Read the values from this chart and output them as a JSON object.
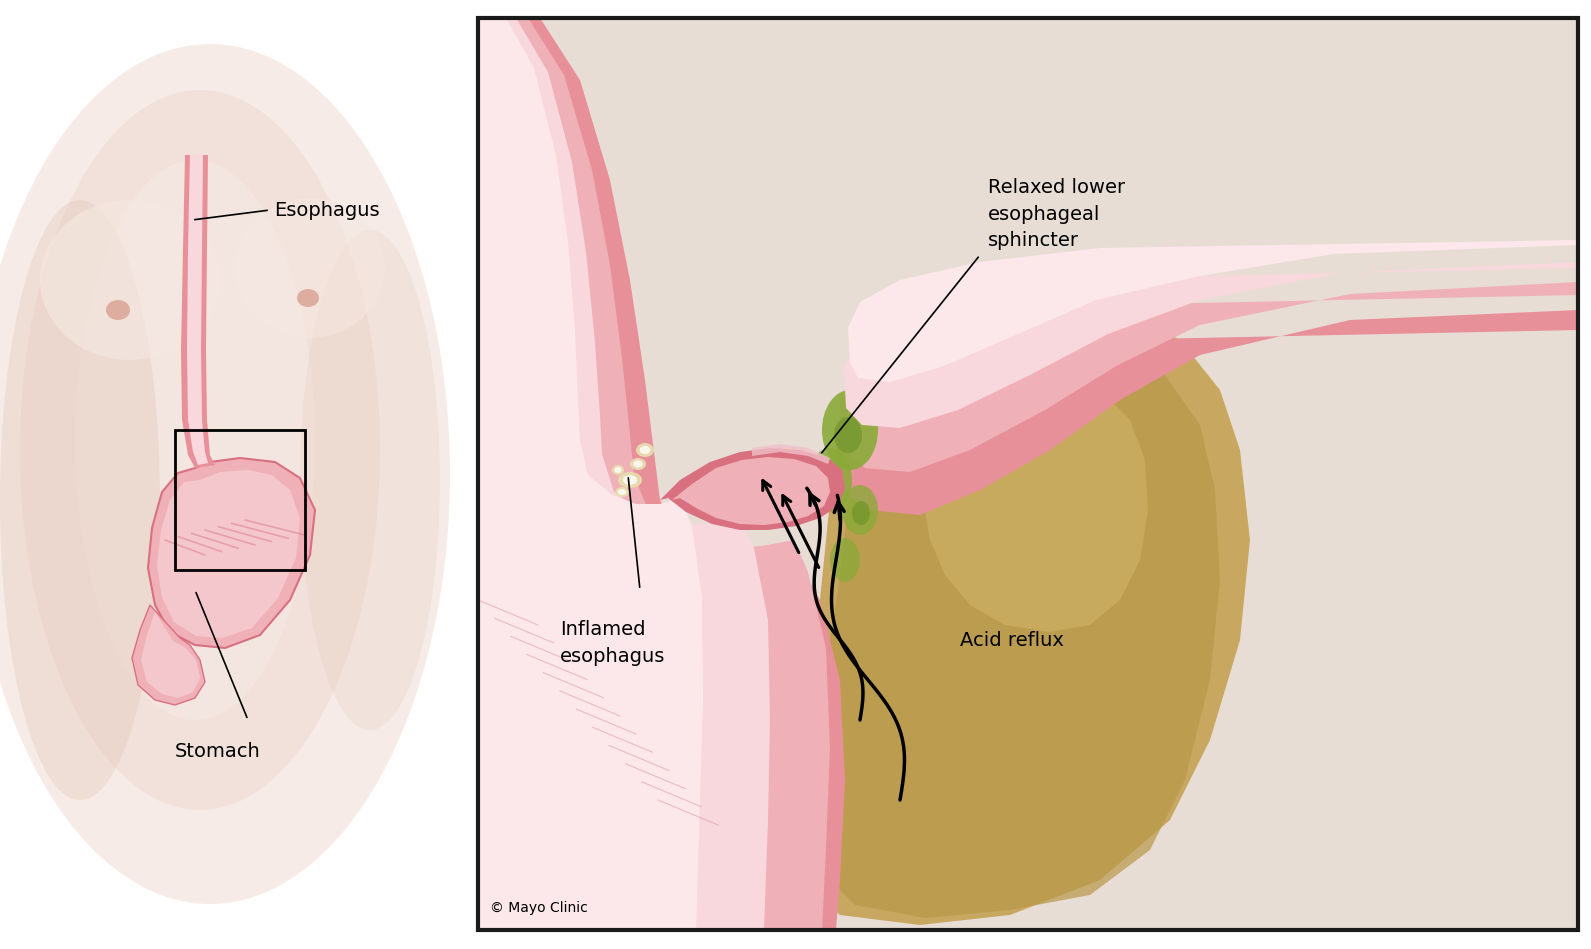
{
  "bg_color": "#ffffff",
  "body_skin_light": "#f5e8e2",
  "body_skin_mid": "#edd8d0",
  "body_skin_dark": "#dfc0b0",
  "pink_outer": "#e8909a",
  "pink_mid": "#f0b0b8",
  "pink_light": "#f8d8dc",
  "pink_inner": "#fce8ea",
  "pink_deep": "#d87080",
  "pink_muscle": "#c86878",
  "right_bg_top": "#e8ddd5",
  "right_bg_bot": "#d4c8b8",
  "tan_stomach": "#c8a860",
  "tan_stomach2": "#b89848",
  "tan_light": "#d4b870",
  "green_acid": "#8aaa38",
  "green_acid2": "#6a9228",
  "right_panel_border": "#1a1a1a",
  "label_color": "#111111",
  "labels": {
    "esophagus": "Esophagus",
    "stomach": "Stomach",
    "relaxed_sphincter": "Relaxed lower\nesophageal\nsphincter",
    "inflamed": "Inflamed\nesophagus",
    "acid_reflux": "Acid reflux",
    "copyright": "© Mayo Clinic"
  }
}
